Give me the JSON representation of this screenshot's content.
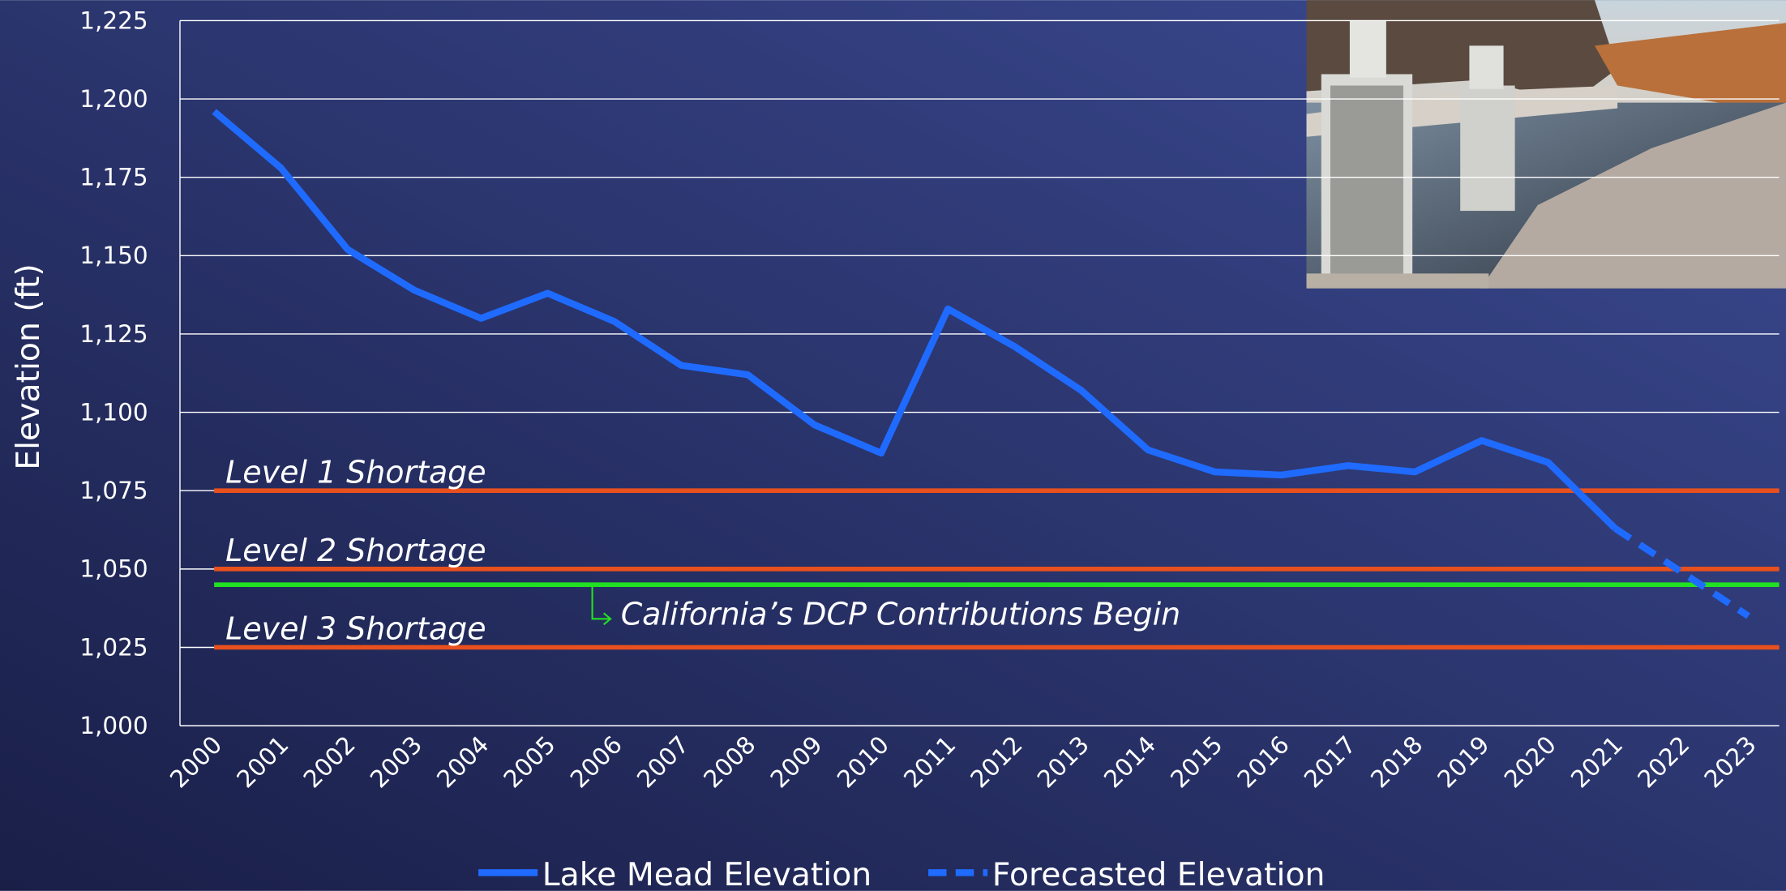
{
  "chart_data": {
    "type": "line",
    "y_label": "Elevation (ft)",
    "categories": [
      "2000",
      "2001",
      "2002",
      "2003",
      "2004",
      "2005",
      "2006",
      "2007",
      "2008",
      "2009",
      "2010",
      "2011",
      "2012",
      "2013",
      "2014",
      "2015",
      "2016",
      "2017",
      "2018",
      "2019",
      "2020",
      "2021",
      "2022",
      "2023"
    ],
    "series": [
      {
        "name": "Lake Mead Elevation",
        "color": "#1f6bff",
        "dash": false,
        "values": [
          1196,
          1178,
          1152,
          1139,
          1130,
          1138,
          1129,
          1115,
          1112,
          1096,
          1087,
          1133,
          1121,
          1107,
          1088,
          1081,
          1080,
          1083,
          1081,
          1091,
          1084,
          1063,
          null,
          null
        ]
      },
      {
        "name": "Forecasted Elevation",
        "color": "#1f6bff",
        "dash": true,
        "values": [
          null,
          null,
          null,
          null,
          null,
          null,
          null,
          null,
          null,
          null,
          null,
          null,
          null,
          null,
          null,
          null,
          null,
          null,
          null,
          null,
          null,
          1063,
          1049,
          1035
        ]
      }
    ],
    "ylim": [
      1000,
      1225
    ],
    "yticks": [
      {
        "value": 1000,
        "label": "1,000"
      },
      {
        "value": 1025,
        "label": "1,025"
      },
      {
        "value": 1050,
        "label": "1,050"
      },
      {
        "value": 1075,
        "label": "1,075"
      },
      {
        "value": 1100,
        "label": "1,100"
      },
      {
        "value": 1125,
        "label": "1,125"
      },
      {
        "value": 1150,
        "label": "1,150"
      },
      {
        "value": 1175,
        "label": "1,175"
      },
      {
        "value": 1200,
        "label": "1,200"
      },
      {
        "value": 1225,
        "label": "1,225"
      }
    ],
    "grid": true,
    "legend": "bottom",
    "reference_lines": [
      {
        "label": "Level 1 Shortage",
        "value": 1075,
        "color": "#e8501e"
      },
      {
        "label": "Level 2 Shortage",
        "value": 1050,
        "color": "#e8501e"
      },
      {
        "label": "California’s DCP Contributions Begin",
        "value": 1045,
        "color": "#22e022"
      },
      {
        "label": "Level 3 Shortage",
        "value": 1025,
        "color": "#e8501e"
      }
    ]
  }
}
